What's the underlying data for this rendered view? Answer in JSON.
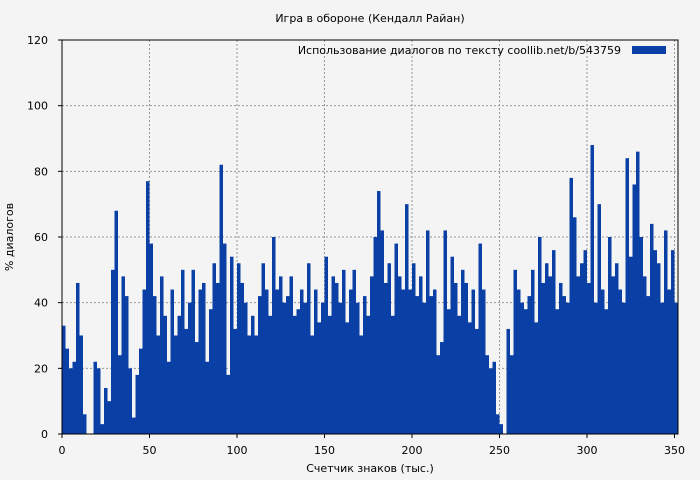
{
  "chart_data": {
    "type": "area",
    "title": "Игра в обороне (Кендалл Райан)",
    "xlabel": "Счетчик знаков (тыс.)",
    "ylabel": "% диалогов",
    "xlim": [
      0,
      352
    ],
    "ylim": [
      0,
      120
    ],
    "x_ticks": [
      0,
      50,
      100,
      150,
      200,
      250,
      300,
      350
    ],
    "y_ticks": [
      0,
      20,
      40,
      60,
      80,
      100,
      120
    ],
    "grid": true,
    "legend_position": "top-right",
    "colors": {
      "series": "#0a3fa5",
      "grid": "#999999",
      "background": "#f4f4f4"
    },
    "series": [
      {
        "name": "Использование диалогов по тексту coollib.net/b/543759",
        "x": [
          0,
          2,
          4,
          6,
          8,
          10,
          12,
          14,
          16,
          18,
          20,
          22,
          24,
          26,
          28,
          30,
          32,
          34,
          36,
          38,
          40,
          42,
          44,
          46,
          48,
          50,
          52,
          54,
          56,
          58,
          60,
          62,
          64,
          66,
          68,
          70,
          72,
          74,
          76,
          78,
          80,
          82,
          84,
          86,
          88,
          90,
          92,
          94,
          96,
          98,
          100,
          102,
          104,
          106,
          108,
          110,
          112,
          114,
          116,
          118,
          120,
          122,
          124,
          126,
          128,
          130,
          132,
          134,
          136,
          138,
          140,
          142,
          144,
          146,
          148,
          150,
          152,
          154,
          156,
          158,
          160,
          162,
          164,
          166,
          168,
          170,
          172,
          174,
          176,
          178,
          180,
          182,
          184,
          186,
          188,
          190,
          192,
          194,
          196,
          198,
          200,
          202,
          204,
          206,
          208,
          210,
          212,
          214,
          216,
          218,
          220,
          222,
          224,
          226,
          228,
          230,
          232,
          234,
          236,
          238,
          240,
          242,
          244,
          246,
          248,
          250,
          252,
          254,
          256,
          258,
          260,
          262,
          264,
          266,
          268,
          270,
          272,
          274,
          276,
          278,
          280,
          282,
          284,
          286,
          288,
          290,
          292,
          294,
          296,
          298,
          300,
          302,
          304,
          306,
          308,
          310,
          312,
          314,
          316,
          318,
          320,
          322,
          324,
          326,
          328,
          330,
          332,
          334,
          336,
          338,
          340,
          342,
          344,
          346,
          348,
          350,
          352
        ],
        "values": [
          33,
          26,
          20,
          22,
          46,
          30,
          6,
          0,
          0,
          22,
          20,
          3,
          14,
          10,
          50,
          68,
          24,
          48,
          42,
          20,
          5,
          18,
          26,
          44,
          77,
          58,
          42,
          30,
          48,
          36,
          22,
          44,
          30,
          36,
          50,
          32,
          40,
          50,
          28,
          44,
          46,
          22,
          38,
          52,
          46,
          82,
          58,
          18,
          54,
          32,
          52,
          46,
          40,
          30,
          36,
          30,
          42,
          52,
          44,
          36,
          60,
          44,
          48,
          40,
          42,
          48,
          36,
          38,
          44,
          40,
          52,
          30,
          44,
          34,
          40,
          54,
          36,
          48,
          46,
          40,
          50,
          34,
          44,
          50,
          40,
          30,
          42,
          36,
          48,
          60,
          74,
          62,
          46,
          52,
          36,
          58,
          48,
          44,
          70,
          44,
          52,
          42,
          48,
          40,
          62,
          42,
          44,
          24,
          28,
          62,
          38,
          54,
          46,
          36,
          50,
          46,
          34,
          44,
          32,
          58,
          44,
          24,
          20,
          22,
          6,
          3,
          0,
          32,
          24,
          50,
          44,
          40,
          38,
          42,
          50,
          34,
          60,
          46,
          52,
          48,
          56,
          38,
          46,
          42,
          40,
          78,
          66,
          48,
          52,
          56,
          46,
          88,
          40,
          70,
          44,
          38,
          60,
          48,
          52,
          44,
          40,
          84,
          54,
          76,
          86,
          60,
          48,
          42,
          64,
          56,
          52,
          40,
          62,
          44,
          56,
          40,
          42
        ]
      }
    ]
  }
}
